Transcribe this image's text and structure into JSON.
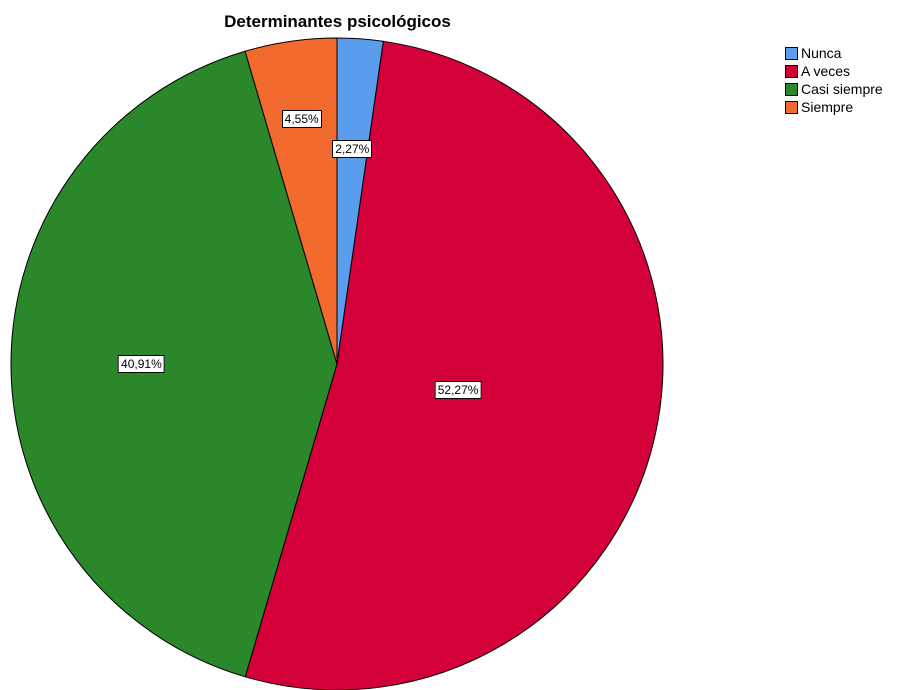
{
  "chart_data": {
    "type": "pie",
    "title": "Determinantes psicológicos",
    "categories": [
      "Nunca",
      "A veces",
      "Casi siempre",
      "Siempre"
    ],
    "values": [
      2.27,
      52.27,
      40.91,
      4.55
    ],
    "labels": [
      "2,27%",
      "52,27%",
      "40,91%",
      "4,55%"
    ],
    "colors": [
      "#5a9ded",
      "#d3003a",
      "#2a872a",
      "#f26a2e"
    ],
    "legend_position": "top-right",
    "start_angle": "12 o'clock",
    "direction": "clockwise"
  }
}
